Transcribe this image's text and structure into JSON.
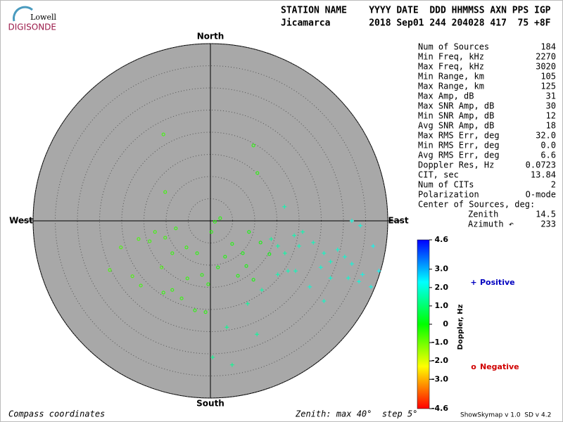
{
  "logo": {
    "top": "Lowell",
    "bottom": "DIGISONDE"
  },
  "header": {
    "line1": "STATION NAME    YYYY DATE  DDD HHMMSS AXN PPS IGP",
    "line2": "Jicamarca       2018 Sep01 244 204028 417  75 +8F"
  },
  "stats": [
    [
      "Num of Sources",
      "184"
    ],
    [
      "Min Freq, kHz",
      "2270"
    ],
    [
      "Max Freq, kHz",
      "3020"
    ],
    [
      "Min Range, km",
      "105"
    ],
    [
      "Max Range, km",
      "125"
    ],
    [
      "Max Amp, dB",
      "31"
    ],
    [
      "Max SNR Amp, dB",
      "30"
    ],
    [
      "Min SNR Amp, dB",
      "12"
    ],
    [
      "Avg SNR Amp, dB",
      "18"
    ],
    [
      "Max RMS Err, deg",
      "32.0"
    ],
    [
      "Min RMS Err, deg",
      "0.0"
    ],
    [
      "Avg RMS Err, deg",
      "6.6"
    ],
    [
      "Doppler Res, Hz",
      "0.0723"
    ],
    [
      "CIT, sec",
      "13.84"
    ],
    [
      "Num of CITs",
      "2"
    ],
    [
      "Polarization",
      "O-mode"
    ],
    [
      "Center of Sources, deg:",
      ""
    ],
    [
      "Zenith",
      "14.5"
    ],
    [
      "Azimuth ↶",
      "233"
    ]
  ],
  "footer": {
    "left": "Compass coordinates",
    "middle": "Zenith: max 40°  step 5°",
    "right": "ShowSkymap v 1.0  SD v 4.2"
  },
  "chart_data": {
    "type": "polar-scatter",
    "directions": {
      "north": "North",
      "south": "South",
      "west": "West",
      "east": "East"
    },
    "rlim": [
      0,
      40
    ],
    "rticks": [
      5,
      10,
      15,
      20,
      25,
      30,
      35,
      40
    ],
    "xlim": [
      -40,
      40
    ],
    "ylim": [
      -40,
      40
    ],
    "series": [
      {
        "name": "Positive",
        "marker": "+",
        "legend_color": "#0000c0",
        "x": [
          16.7,
          31.9,
          33.8,
          36.7,
          38,
          36.2,
          33.5,
          31.1,
          30.3,
          27.1,
          25.6,
          23.2,
          20.8,
          18.9,
          16.8,
          17.5,
          19.2,
          15.2,
          22.4,
          25.6,
          11.6,
          8.4,
          3.7,
          10.5,
          0.5,
          4.9,
          28.7,
          31.9,
          34.3,
          15.2,
          13.7,
          27.1,
          20,
          24.9
        ],
        "y": [
          3.2,
          0,
          -1.1,
          -5.7,
          -11.3,
          -14.9,
          -13.7,
          -12.9,
          -8.1,
          -9.2,
          -7.3,
          -4.9,
          -2.5,
          -3.3,
          -7.3,
          -11.3,
          -11.3,
          -12.1,
          -14.9,
          -18.1,
          -15.6,
          -18.7,
          -24,
          -25.6,
          -30.8,
          -32.5,
          -6.5,
          -9.7,
          -12.1,
          -5.7,
          -4.1,
          -12.9,
          -5.7,
          -10.5
        ],
        "doppler": [
          1.6,
          2.0,
          2.0,
          2.2,
          2.3,
          2.1,
          2.0,
          1.9,
          1.9,
          1.8,
          1.8,
          1.7,
          1.6,
          1.6,
          1.5,
          1.7,
          1.7,
          1.6,
          1.9,
          1.8,
          1.5,
          1.4,
          1.3,
          1.4,
          1.3,
          1.3,
          1.9,
          2.0,
          2.1,
          1.5,
          1.4,
          1.9,
          1.7,
          1.9
        ]
      },
      {
        "name": "Negative",
        "marker": "o",
        "legend_color": "#d00000",
        "x": [
          -10.6,
          -10.2,
          9.7,
          10.6,
          -22.7,
          -20.2,
          -17.6,
          -15.7,
          -13.7,
          -11,
          -10.6,
          -8.6,
          -6.5,
          -3.5,
          -1.1,
          -5.2,
          -1.9,
          -0.5,
          1.7,
          3.3,
          6.2,
          8.1,
          9.7,
          4.9,
          7.3,
          8.7,
          11.3,
          13.3,
          -7.8,
          -5.4,
          0.2,
          1,
          2.2,
          -12.5,
          -8.6,
          -3,
          -10.2,
          -16.2
        ],
        "y": [
          19.5,
          6.5,
          17,
          10.8,
          -11.1,
          -6,
          -12.5,
          -14.6,
          -4.6,
          -10.5,
          -16.2,
          -15.6,
          -17.5,
          -20.2,
          -20.6,
          -13,
          -12.2,
          -14.3,
          -10.5,
          -8.1,
          -12.4,
          -10.2,
          -13.3,
          -5.2,
          -7.3,
          -2.5,
          -4.9,
          -7.5,
          -1.7,
          -6,
          -2.5,
          -0.2,
          0.6,
          -2.5,
          -7.3,
          -7.3,
          -3.8,
          -4.1
        ],
        "doppler": [
          -0.5,
          -0.5,
          -0.3,
          -0.3,
          -0.6,
          -0.6,
          -0.6,
          -0.5,
          -0.5,
          -0.6,
          -0.4,
          -0.4,
          -0.4,
          -0.3,
          -0.3,
          -0.4,
          -0.3,
          -0.3,
          -0.2,
          -0.2,
          -0.2,
          -0.1,
          -0.1,
          -0.2,
          -0.1,
          -0.1,
          -0.1,
          0,
          -0.4,
          -0.4,
          -0.3,
          -0.3,
          -0.3,
          -0.5,
          -0.4,
          -0.3,
          -0.5,
          -0.6
        ]
      }
    ],
    "colorbar": {
      "label": "Doppler, Hz",
      "lim": [
        -4.6,
        4.6
      ],
      "ticks": [
        {
          "value": 4.6,
          "label": "4.6"
        },
        {
          "value": 3,
          "label": "3.0"
        },
        {
          "value": 2,
          "label": "2.0"
        },
        {
          "value": 1,
          "label": "1.0"
        },
        0,
        {
          "value": -1,
          "label": "-1.0"
        },
        {
          "value": -2,
          "label": "-2.0"
        },
        {
          "value": -3,
          "label": "-3.0"
        },
        {
          "value": -4.6,
          "label": "-4.6"
        }
      ]
    }
  }
}
